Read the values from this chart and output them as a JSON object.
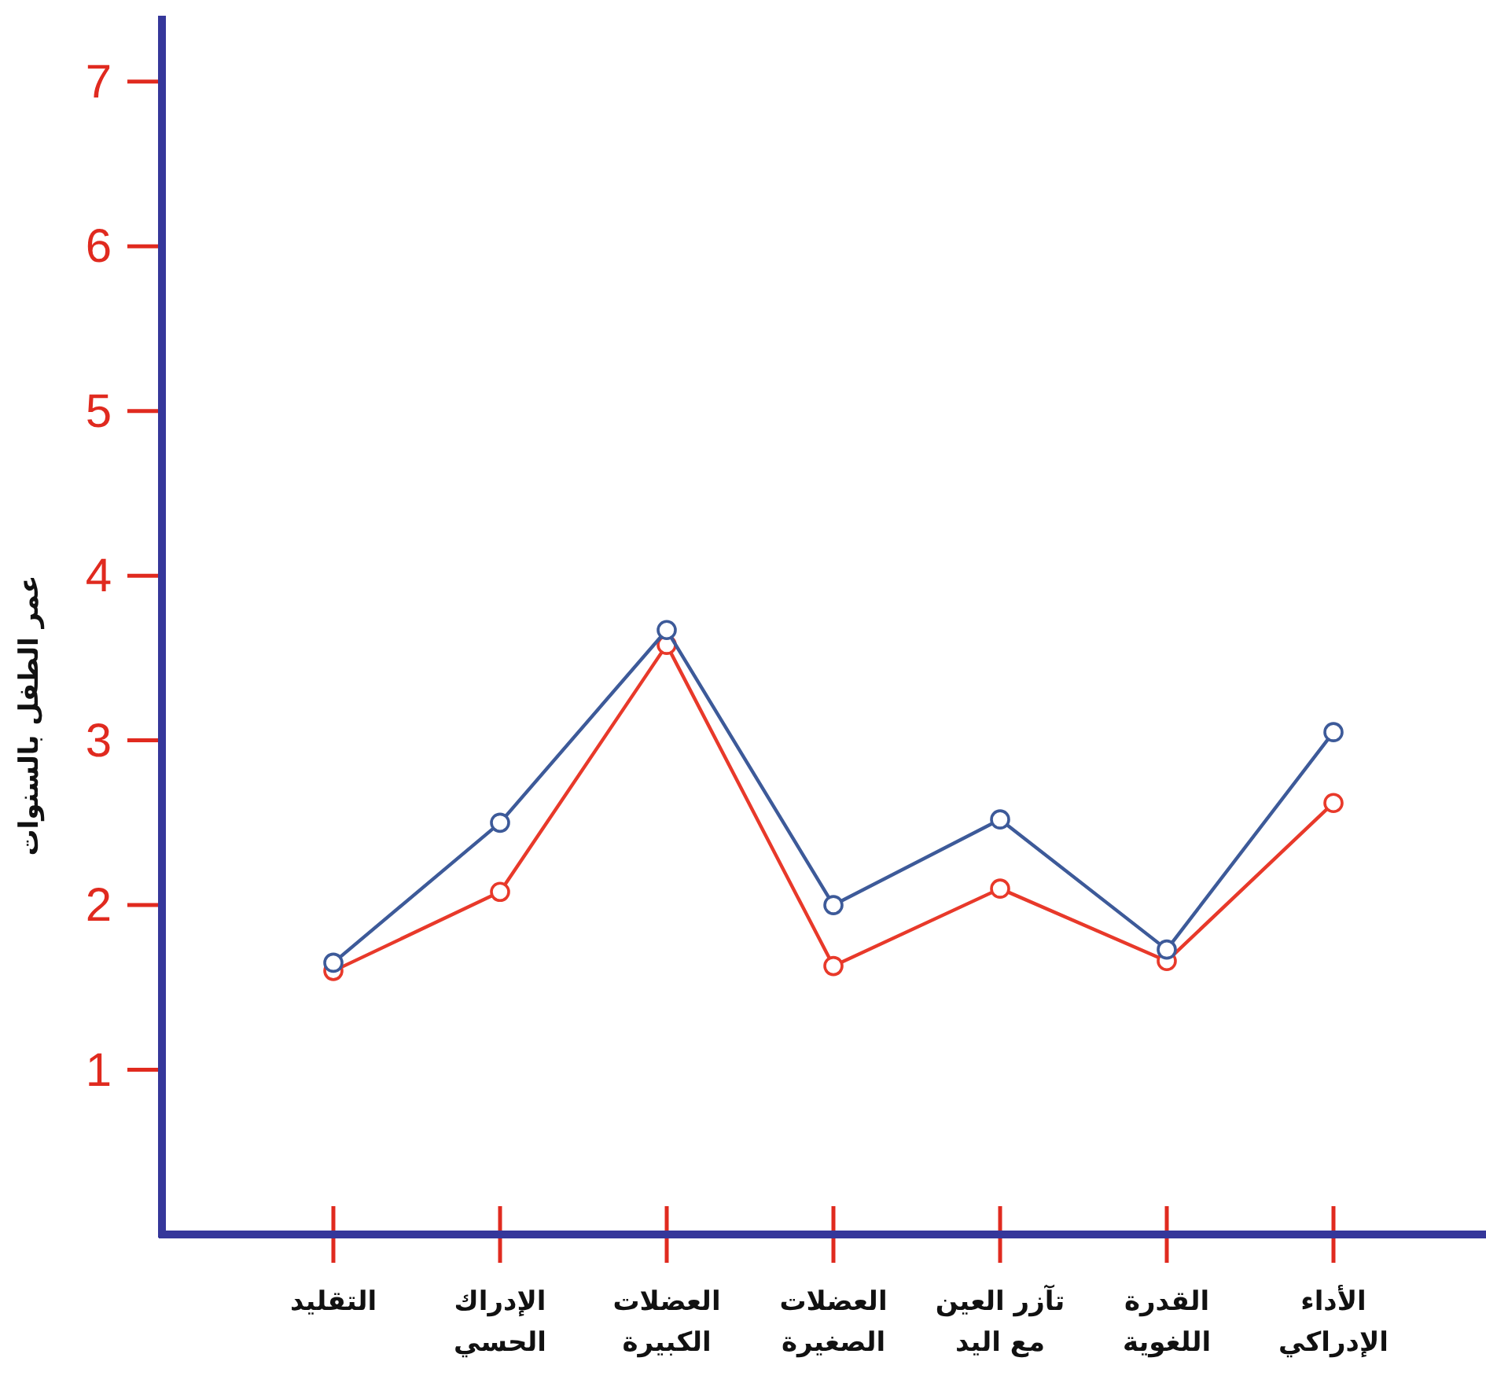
{
  "chart_data": {
    "type": "line",
    "ylabel": "عمر الطفل بالسنوات",
    "categories": [
      "التقليد",
      "الإدراك الحسي",
      "العضلات الكبيرة",
      "العضلات الصغيرة",
      "تآزر العين مع اليد",
      "القدرة اللغوية",
      "الأداء الإدراكي"
    ],
    "series": [
      {
        "color": "#3d5a99",
        "values": [
          1.65,
          2.5,
          3.67,
          2.0,
          2.52,
          1.73,
          3.05
        ]
      },
      {
        "color": "#e8392a",
        "values": [
          1.6,
          2.08,
          3.58,
          1.63,
          2.1,
          1.66,
          2.62
        ]
      }
    ],
    "ylim": [
      0,
      7.4
    ],
    "yticks": [
      1,
      2,
      3,
      4,
      5,
      6,
      7
    ],
    "marker": "circle"
  }
}
